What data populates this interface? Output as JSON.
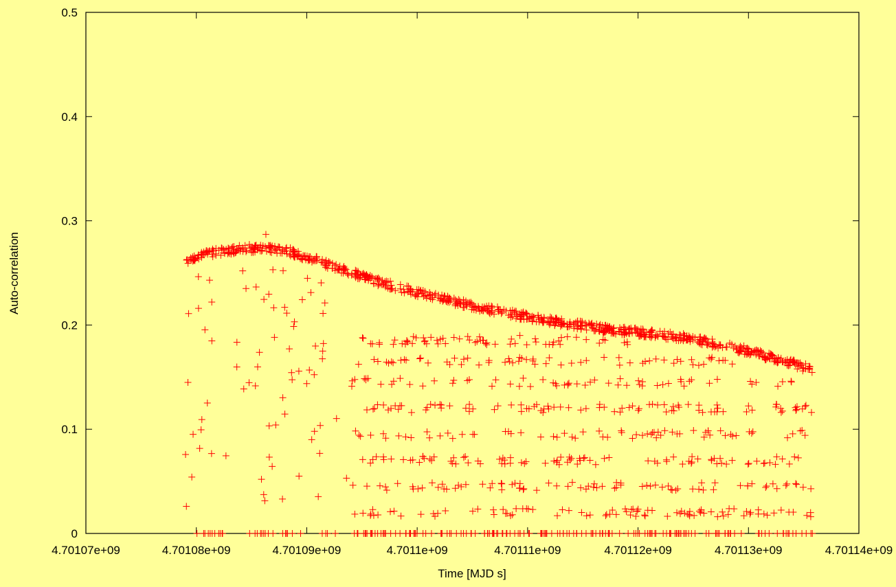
{
  "chart_data": {
    "type": "scatter",
    "xlabel": "Time [MJD s]",
    "ylabel": "Auto-correlation",
    "xlim": [
      4701070000,
      4701140000
    ],
    "ylim": [
      0,
      0.5
    ],
    "x_tick_labels": [
      "4.70107e+09",
      "4.70108e+09",
      "4.70109e+09",
      "4.7011e+09",
      "4.70111e+09",
      "4.70112e+09",
      "4.70113e+09",
      "4.70114e+09"
    ],
    "y_tick_labels": [
      "0",
      "0.1",
      "0.2",
      "0.3",
      "0.4",
      "0.5"
    ],
    "grid": false,
    "marker": "+",
    "marker_color": "#ff0000",
    "background_color": "#ffff99",
    "x_data_range": [
      4701079000,
      4701135800
    ],
    "upper_envelope": {
      "x": [
        4701079000,
        4701080000,
        4701082000,
        4701084000,
        4701086000,
        4701088000,
        4701090000,
        4701092000,
        4701094000,
        4701096000,
        4701098000,
        4701100000,
        4701102000,
        4701104000,
        4701106000,
        4701108000,
        4701110000,
        4701112000,
        4701114000,
        4701116000,
        4701118000,
        4701120000,
        4701122000,
        4701124000,
        4701126000,
        4701128000,
        4701130000,
        4701132000,
        4701134000,
        4701135800
      ],
      "y": [
        0.262,
        0.266,
        0.27,
        0.273,
        0.274,
        0.272,
        0.265,
        0.258,
        0.25,
        0.243,
        0.237,
        0.231,
        0.226,
        0.221,
        0.216,
        0.212,
        0.208,
        0.204,
        0.201,
        0.198,
        0.195,
        0.193,
        0.191,
        0.188,
        0.184,
        0.18,
        0.175,
        0.169,
        0.163,
        0.157
      ]
    },
    "lower_band_levels": [
      0.0,
      0.02,
      0.045,
      0.07,
      0.095,
      0.12,
      0.145,
      0.165,
      0.185
    ],
    "sparse_region_x": [
      4701079000,
      4701093000
    ],
    "dense_region_x": [
      4701094000,
      4701135800
    ],
    "outliers": {
      "x": [
        4701079100,
        4701079300,
        4701080200,
        4701081200,
        4701081400,
        4701084200,
        4701084500,
        4701085900,
        4701086300,
        4701087800,
        4701088000,
        4701089300,
        4701090700,
        4701093600,
        4701109300
      ],
      "y": [
        0.026,
        0.211,
        0.216,
        0.243,
        0.222,
        0.252,
        0.235,
        0.052,
        0.287,
        0.033,
        0.217,
        0.055,
        0.098,
        0.053,
        0.19
      ]
    }
  }
}
